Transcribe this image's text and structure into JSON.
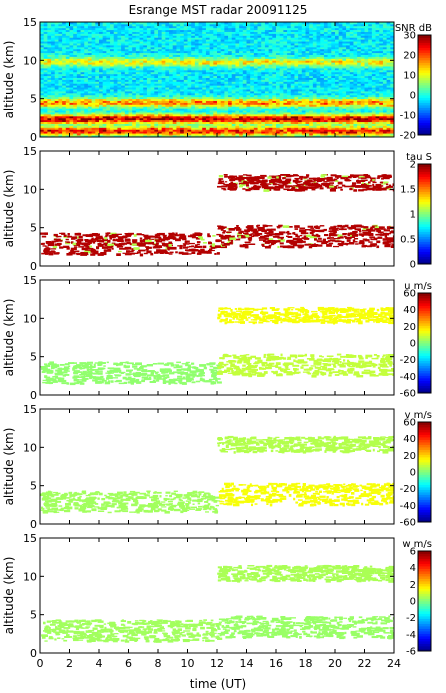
{
  "title": "Esrange MST radar 20091125",
  "xlabel": "time (UT)",
  "chart_data": [
    {
      "type": "heatmap",
      "ylabel": "altitude (km)",
      "ylim": [
        0,
        15
      ],
      "yticks": [
        0,
        5,
        10,
        15
      ],
      "xlim": [
        0,
        24
      ],
      "xticks": [
        0,
        2,
        4,
        6,
        8,
        10,
        12,
        14,
        16,
        18,
        20,
        22,
        24
      ],
      "colorbar": {
        "label": "SNR dB",
        "min": -20,
        "max": 30,
        "ticks": [
          -20,
          -10,
          0,
          10,
          20,
          30
        ]
      },
      "layers": [
        {
          "alt_km": 9.8,
          "value": 8,
          "start_h": 0,
          "end_h": 24
        },
        {
          "alt_km": 4.5,
          "value": 14,
          "start_h": 0,
          "end_h": 24
        },
        {
          "alt_km": 2.4,
          "value": 24,
          "start_h": 0,
          "end_h": 24
        },
        {
          "alt_km": 0.8,
          "value": 20,
          "start_h": 0,
          "end_h": 24
        }
      ]
    },
    {
      "type": "heatmap",
      "ylabel": "altitude (km)",
      "ylim": [
        0,
        15
      ],
      "yticks": [
        0,
        5,
        10,
        15
      ],
      "xlim": [
        0,
        24
      ],
      "xticks": [
        0,
        2,
        4,
        6,
        8,
        10,
        12,
        14,
        16,
        18,
        20,
        22,
        24
      ],
      "colorbar": {
        "label": "tau S",
        "min": 0,
        "max": 2,
        "ticks": [
          0,
          0.5,
          1,
          1.5,
          2
        ]
      },
      "layers": [
        {
          "alt_km": 3.0,
          "value": 1.9,
          "start_h": 0,
          "end_h": 12
        },
        {
          "alt_km": 4.0,
          "value": 1.9,
          "start_h": 12,
          "end_h": 24
        },
        {
          "alt_km": 11.0,
          "value": 1.9,
          "start_h": 12,
          "end_h": 24
        }
      ]
    },
    {
      "type": "heatmap",
      "ylabel": "altitude (km)",
      "ylim": [
        0,
        15
      ],
      "yticks": [
        0,
        5,
        10,
        15
      ],
      "xlim": [
        0,
        24
      ],
      "xticks": [
        0,
        2,
        4,
        6,
        8,
        10,
        12,
        14,
        16,
        18,
        20,
        22,
        24
      ],
      "colorbar": {
        "label": "u m/s",
        "min": -60,
        "max": 60,
        "ticks": [
          -60,
          -40,
          -20,
          0,
          20,
          40,
          60
        ]
      },
      "layers": [
        {
          "alt_km": 3.0,
          "value": 2,
          "start_h": 0,
          "end_h": 12
        },
        {
          "alt_km": 4.0,
          "value": 8,
          "start_h": 12,
          "end_h": 24
        },
        {
          "alt_km": 10.5,
          "value": 14,
          "start_h": 12,
          "end_h": 24
        }
      ]
    },
    {
      "type": "heatmap",
      "ylabel": "altitude (km)",
      "ylim": [
        0,
        15
      ],
      "yticks": [
        0,
        5,
        10,
        15
      ],
      "xlim": [
        0,
        24
      ],
      "xticks": [
        0,
        2,
        4,
        6,
        8,
        10,
        12,
        14,
        16,
        18,
        20,
        22,
        24
      ],
      "colorbar": {
        "label": "v m/s",
        "min": -60,
        "max": 60,
        "ticks": [
          -60,
          -40,
          -20,
          0,
          20,
          40,
          60
        ]
      },
      "layers": [
        {
          "alt_km": 3.0,
          "value": 4,
          "start_h": 0,
          "end_h": 12
        },
        {
          "alt_km": 4.0,
          "value": 14,
          "start_h": 12,
          "end_h": 24
        },
        {
          "alt_km": 10.5,
          "value": 6,
          "start_h": 12,
          "end_h": 24
        }
      ]
    },
    {
      "type": "heatmap",
      "ylabel": "altitude (km)",
      "ylim": [
        0,
        15
      ],
      "yticks": [
        0,
        5,
        10,
        15
      ],
      "xlim": [
        0,
        24
      ],
      "xticks": [
        0,
        2,
        4,
        6,
        8,
        10,
        12,
        14,
        16,
        18,
        20,
        22,
        24
      ],
      "colorbar": {
        "label": "w m/s",
        "min": -6,
        "max": 6,
        "ticks": [
          -6,
          -4,
          -2,
          0,
          2,
          4,
          6
        ]
      },
      "layers": [
        {
          "alt_km": 3.0,
          "value": 0.4,
          "start_h": 0,
          "end_h": 12
        },
        {
          "alt_km": 3.5,
          "value": 0.3,
          "start_h": 12,
          "end_h": 24
        },
        {
          "alt_km": 10.5,
          "value": 0.5,
          "start_h": 12,
          "end_h": 24
        }
      ]
    }
  ]
}
